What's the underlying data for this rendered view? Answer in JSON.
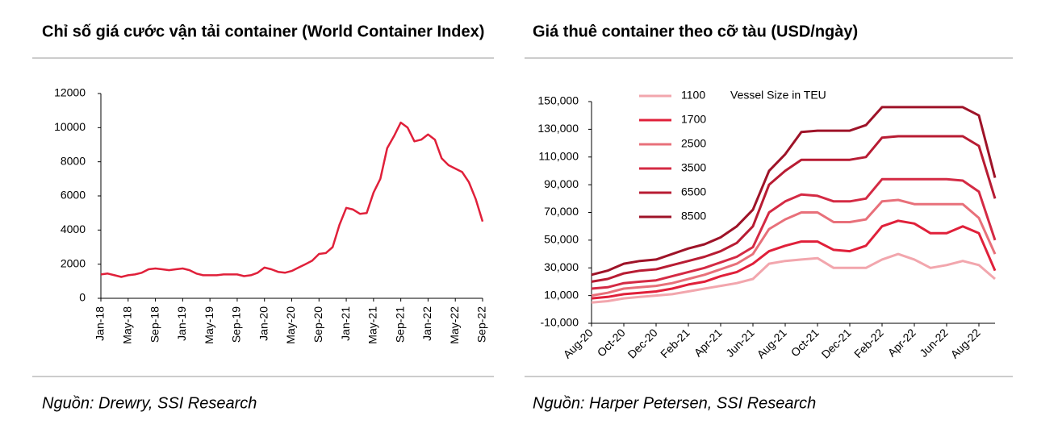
{
  "chart_data": [
    {
      "type": "line",
      "title": "Chỉ số giá cước vận tải container (World Container Index)",
      "source": "Nguồn: Drewry, SSI Research",
      "categories": [
        "Jan-18",
        null,
        null,
        null,
        "May-18",
        null,
        null,
        null,
        "Sep-18",
        null,
        null,
        null,
        "Jan-19",
        null,
        null,
        null,
        "May-19",
        null,
        null,
        null,
        "Sep-19",
        null,
        null,
        null,
        "Jan-20",
        null,
        null,
        null,
        "May-20",
        null,
        null,
        null,
        "Sep-20",
        null,
        null,
        null,
        "Jan-21",
        null,
        null,
        null,
        "May-21",
        null,
        null,
        null,
        "Sep-21",
        null,
        null,
        null,
        "Jan-22",
        null,
        null,
        null,
        "May-22",
        null,
        null,
        null,
        "Sep-22"
      ],
      "series": [
        {
          "name": "World Container Index",
          "color": "#e0203a",
          "values": [
            1400,
            1450,
            1350,
            1250,
            1350,
            1400,
            1500,
            1700,
            1750,
            1700,
            1650,
            1700,
            1750,
            1650,
            1450,
            1350,
            1350,
            1350,
            1400,
            1400,
            1400,
            1300,
            1350,
            1500,
            1800,
            1700,
            1550,
            1500,
            1600,
            1800,
            2000,
            2200,
            2600,
            2650,
            3000,
            4300,
            5300,
            5200,
            4950,
            5000,
            6200,
            7000,
            8800,
            9500,
            10300,
            10000,
            9200,
            9300,
            9600,
            9300,
            8200,
            7800,
            7600,
            7400,
            6800,
            5800,
            4500
          ]
        }
      ],
      "ylim": [
        0,
        12000
      ],
      "yticks": [
        0,
        2000,
        4000,
        6000,
        8000,
        10000,
        12000
      ],
      "grid": false
    },
    {
      "type": "line",
      "title": "Giá thuê container theo cỡ tàu (USD/ngày)",
      "source": "Nguồn: Harper Petersen, SSI Research",
      "legend_title": "Vessel Size in TEU",
      "categories": [
        "Aug-20",
        null,
        "Oct-20",
        null,
        "Dec-20",
        null,
        "Feb-21",
        null,
        "Apr-21",
        null,
        "Jun-21",
        null,
        "Aug-21",
        null,
        "Oct-21",
        null,
        "Dec-21",
        null,
        "Feb-22",
        null,
        "Apr-22",
        null,
        "Jun-22",
        null,
        "Aug-22",
        null
      ],
      "series": [
        {
          "name": "1100",
          "color": "#f2a6ad",
          "values": [
            5000,
            6000,
            8000,
            9000,
            10000,
            11000,
            13000,
            15000,
            17000,
            19000,
            22000,
            33000,
            35000,
            36000,
            37000,
            30000,
            30000,
            30000,
            36000,
            40000,
            36000,
            30000,
            32000,
            35000,
            32000,
            22000
          ]
        },
        {
          "name": "1700",
          "color": "#e0203a",
          "values": [
            8000,
            9000,
            11000,
            12000,
            13000,
            15000,
            18000,
            20000,
            24000,
            27000,
            33000,
            42000,
            46000,
            49000,
            49000,
            43000,
            42000,
            46000,
            60000,
            64000,
            62000,
            55000,
            55000,
            60000,
            55000,
            28000
          ]
        },
        {
          "name": "2500",
          "color": "#e8707a",
          "values": [
            10000,
            12000,
            15000,
            16000,
            17000,
            19000,
            22000,
            25000,
            29000,
            33000,
            40000,
            58000,
            65000,
            70000,
            70000,
            63000,
            63000,
            65000,
            78000,
            79000,
            76000,
            76000,
            76000,
            76000,
            66000,
            40000
          ]
        },
        {
          "name": "3500",
          "color": "#d42a44",
          "values": [
            15000,
            16000,
            19000,
            20000,
            21000,
            24000,
            27000,
            30000,
            34000,
            38000,
            45000,
            70000,
            78000,
            83000,
            82000,
            78000,
            78000,
            80000,
            94000,
            94000,
            94000,
            94000,
            94000,
            93000,
            85000,
            50000
          ]
        },
        {
          "name": "6500",
          "color": "#b81c33",
          "values": [
            20000,
            22000,
            26000,
            28000,
            29000,
            32000,
            35000,
            38000,
            42000,
            48000,
            60000,
            90000,
            100000,
            108000,
            108000,
            108000,
            108000,
            110000,
            124000,
            125000,
            125000,
            125000,
            125000,
            125000,
            118000,
            80000
          ]
        },
        {
          "name": "8500",
          "color": "#9e1328",
          "values": [
            25000,
            28000,
            33000,
            35000,
            36000,
            40000,
            44000,
            47000,
            52000,
            60000,
            72000,
            100000,
            112000,
            128000,
            129000,
            129000,
            129000,
            133000,
            146000,
            146000,
            146000,
            146000,
            146000,
            146000,
            140000,
            95000
          ]
        }
      ],
      "ylim": [
        -10000,
        150000
      ],
      "yticks": [
        {
          "value": -10000,
          "label": "-10,000"
        },
        {
          "value": 10000,
          "label": "10,000"
        },
        {
          "value": 30000,
          "label": "30,000"
        },
        {
          "value": 50000,
          "label": "50,000"
        },
        {
          "value": 70000,
          "label": "70,000"
        },
        {
          "value": 90000,
          "label": "90,000"
        },
        {
          "value": 110000,
          "label": "110,000"
        },
        {
          "value": 130000,
          "label": "130,000"
        },
        {
          "value": 150000,
          "label": "150,000"
        }
      ],
      "grid": false
    }
  ]
}
